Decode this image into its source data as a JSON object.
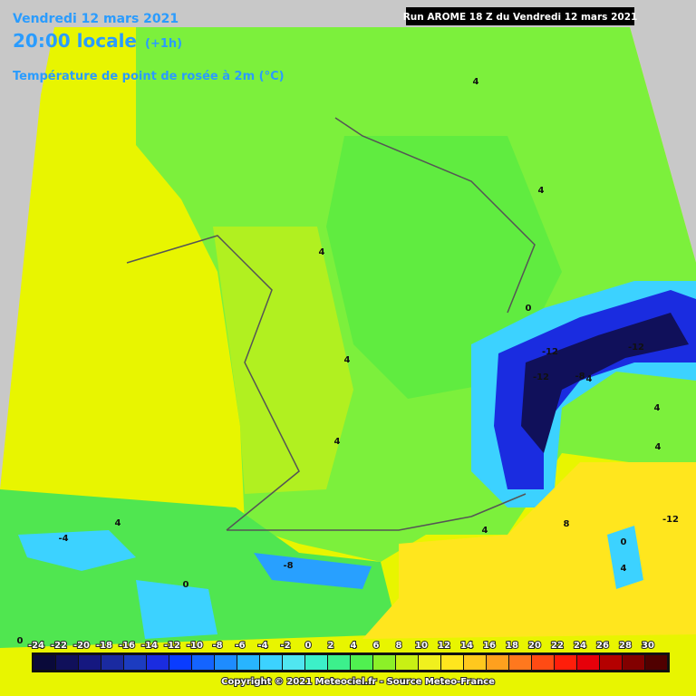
{
  "header": {
    "date": "Vendredi 12 mars 2021",
    "time": "20:00 locale",
    "offset": "(+1h)",
    "parameter": "Température de point de rosée à 2m (°C)",
    "run": "Run AROME 18 Z du Vendredi 12 mars 2021"
  },
  "contour_labels": [
    4,
    4,
    4,
    0,
    -12,
    -12,
    -12,
    -8,
    4,
    4,
    4,
    4,
    4,
    -12,
    4,
    8,
    0,
    4,
    -4,
    4,
    -8,
    0,
    0
  ],
  "color_scale": {
    "ticks": [
      -24,
      -22,
      -20,
      -18,
      -16,
      -14,
      -12,
      -10,
      -8,
      -6,
      -4,
      -2,
      0,
      2,
      4,
      6,
      8,
      10,
      12,
      14,
      16,
      18,
      20,
      22,
      24,
      26,
      28,
      30
    ],
    "colors": [
      "#0a0a3a",
      "#10105a",
      "#151880",
      "#1a2aa0",
      "#1c3cc0",
      "#1a2ce0",
      "#0a3cff",
      "#1464ff",
      "#1e8cff",
      "#28b4ff",
      "#3cd2ff",
      "#50e6f0",
      "#3cf0c8",
      "#3cf08c",
      "#50f050",
      "#8cf028",
      "#c8f014",
      "#f0f01e",
      "#ffe61e",
      "#ffc81e",
      "#ffa01e",
      "#ff781e",
      "#ff4b14",
      "#ff1e0a",
      "#e6000a",
      "#b40000",
      "#820000",
      "#500000"
    ]
  },
  "copyright": "Copyright © 2021 Meteociel.fr - Source Meteo-France"
}
